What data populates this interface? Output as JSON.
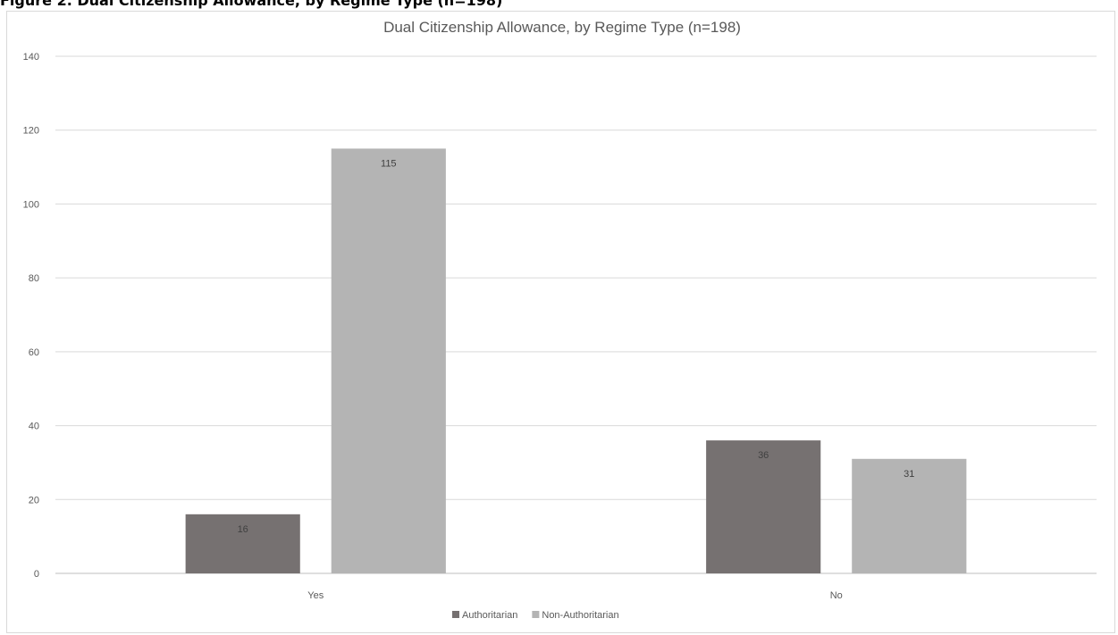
{
  "page": {
    "top_caption": "Figure 2. Dual Citizenship Allowance, by Regime Type (n=198)"
  },
  "chart_data": {
    "type": "bar",
    "title": "Dual Citizenship Allowance, by Regime Type (n=198)",
    "xlabel": "",
    "ylabel": "",
    "categories": [
      "Yes",
      "No"
    ],
    "series": [
      {
        "name": "Authoritarian",
        "values": [
          16,
          36
        ],
        "color": "#767171"
      },
      {
        "name": "Non-Authoritarian",
        "values": [
          115,
          31
        ],
        "color": "#b4b4b4"
      }
    ],
    "ylim": [
      0,
      140
    ],
    "yticks": [
      0,
      20,
      40,
      60,
      80,
      100,
      120,
      140
    ],
    "grid": true,
    "legend_position": "bottom",
    "data_labels": true
  }
}
